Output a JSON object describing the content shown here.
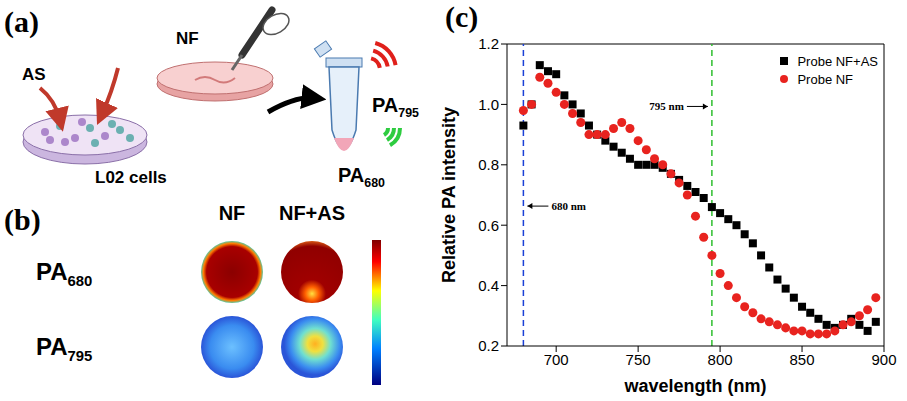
{
  "figure": {
    "panel_labels": [
      "(a)",
      "(b)",
      "(c)"
    ],
    "panel_a": {
      "treatment": "AS",
      "probe": "NF",
      "cells": "L02 cells",
      "signals": [
        {
          "text": "PA",
          "subscript": "795",
          "color": "#e0201b"
        },
        {
          "text": "PA",
          "subscript": "680",
          "color": "#2ecc40"
        }
      ]
    },
    "panel_b": {
      "columns": [
        "NF",
        "NF+AS"
      ],
      "rows": [
        {
          "text": "PA",
          "subscript": "680"
        },
        {
          "text": "PA",
          "subscript": "795"
        }
      ]
    }
  },
  "chart_data": {
    "type": "scatter",
    "x_label": "wavelength (nm)",
    "y_label": "Relative PA intensity",
    "xlim": [
      670,
      900
    ],
    "xticks": [
      700,
      750,
      800,
      850,
      900
    ],
    "ylim": [
      0.2,
      1.2
    ],
    "yticks": [
      0.2,
      0.4,
      0.6,
      0.8,
      {
        "value": 1,
        "label": "1.0"
      },
      1.2
    ],
    "legend": "upper right",
    "x": [
      680,
      685,
      690,
      695,
      700,
      705,
      710,
      715,
      720,
      725,
      730,
      735,
      740,
      745,
      750,
      755,
      760,
      765,
      770,
      775,
      780,
      785,
      790,
      795,
      800,
      805,
      810,
      815,
      820,
      825,
      830,
      835,
      840,
      845,
      850,
      855,
      860,
      865,
      870,
      875,
      880,
      885,
      890,
      895
    ],
    "series": [
      {
        "name": "Probe NF+AS",
        "color": "#000000",
        "marker": "square",
        "values": [
          0.93,
          1.0,
          1.13,
          1.11,
          1.1,
          1.03,
          1.0,
          0.97,
          0.93,
          0.9,
          0.88,
          0.86,
          0.84,
          0.82,
          0.8,
          0.8,
          0.8,
          0.79,
          0.77,
          0.75,
          0.73,
          0.71,
          0.69,
          0.66,
          0.64,
          0.62,
          0.6,
          0.57,
          0.54,
          0.5,
          0.46,
          0.42,
          0.39,
          0.36,
          0.33,
          0.31,
          0.29,
          0.27,
          0.26,
          0.27,
          0.29,
          0.27,
          0.25,
          0.28
        ]
      },
      {
        "name": "Probe NF",
        "color": "#e8231f",
        "marker": "circle",
        "values": [
          0.98,
          1.0,
          1.09,
          1.07,
          1.04,
          1.0,
          0.97,
          0.94,
          0.9,
          0.9,
          0.9,
          0.92,
          0.94,
          0.92,
          0.88,
          0.85,
          0.82,
          0.8,
          0.77,
          0.74,
          0.7,
          0.63,
          0.56,
          0.5,
          0.44,
          0.4,
          0.36,
          0.33,
          0.31,
          0.29,
          0.28,
          0.27,
          0.26,
          0.25,
          0.25,
          0.24,
          0.24,
          0.24,
          0.25,
          0.27,
          0.28,
          0.3,
          0.32,
          0.36
        ]
      }
    ],
    "annotations": [
      {
        "x": 680,
        "label": "680 nm",
        "color": "#1a3fd6",
        "line_style": "dashed"
      },
      {
        "x": 795,
        "label": "795 nm",
        "color": "#2fbf2f",
        "line_style": "dashed"
      }
    ]
  }
}
